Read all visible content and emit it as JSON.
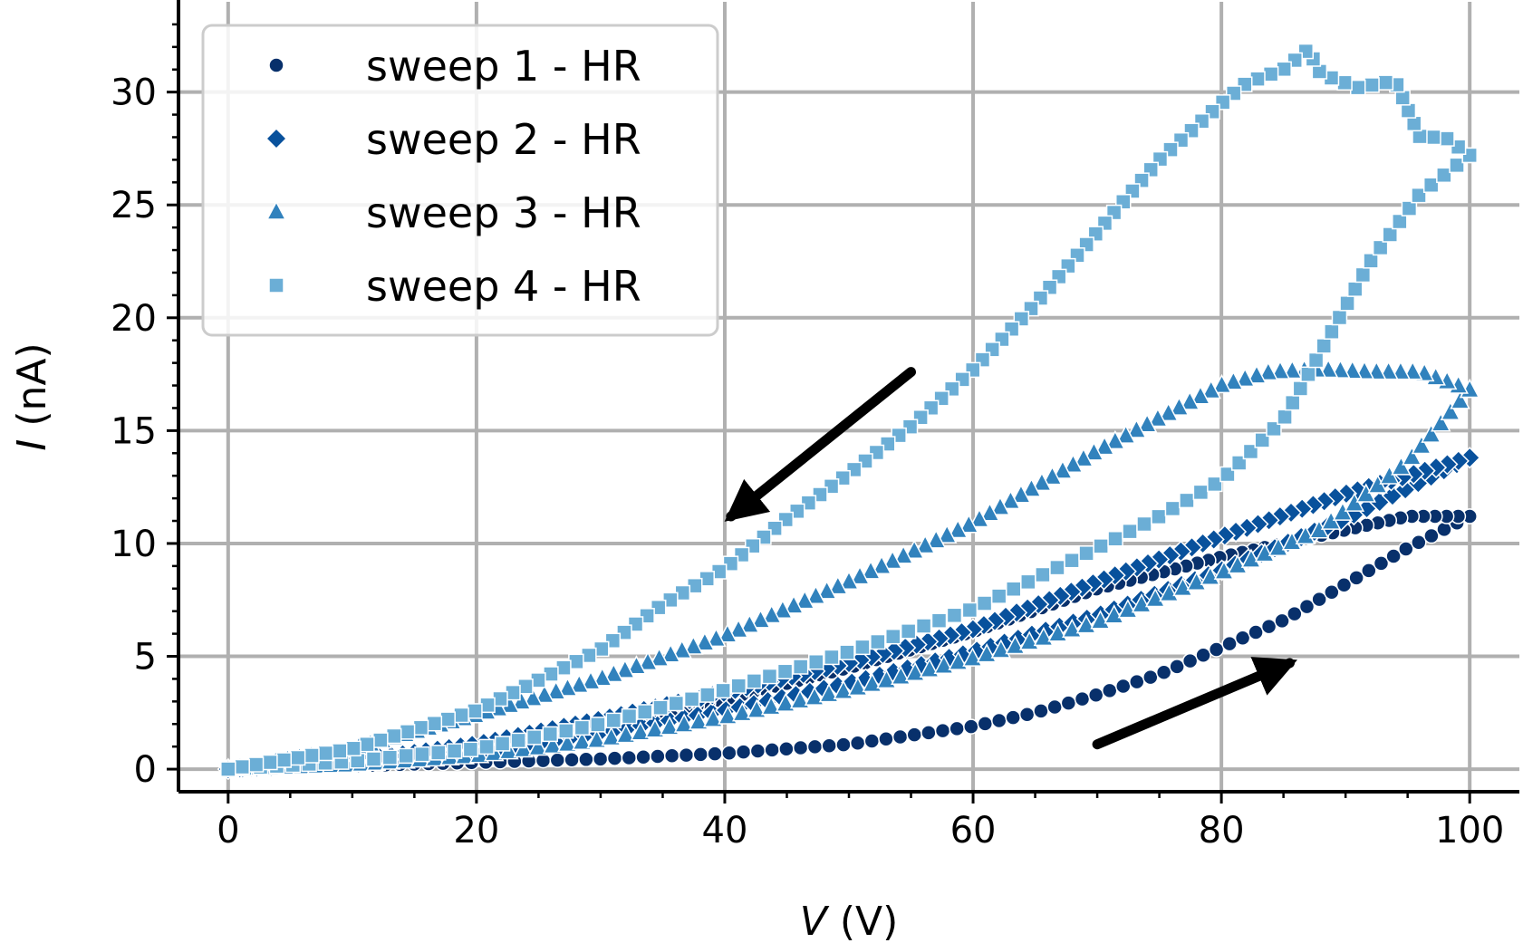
{
  "chart_data": {
    "type": "scatter",
    "title": "",
    "xlabel": {
      "var": "V",
      "unit": "(V)"
    },
    "ylabel": {
      "var": "I",
      "unit": "(nA)"
    },
    "xlim": [
      -4,
      104
    ],
    "ylim": [
      -1.0,
      34.0
    ],
    "xticks": [
      0,
      20,
      40,
      60,
      80,
      100
    ],
    "xtick_labels": [
      "0",
      "20",
      "40",
      "60",
      "80",
      "100"
    ],
    "yticks": [
      0,
      5,
      10,
      15,
      20,
      25,
      30
    ],
    "ytick_labels": [
      "0",
      "5",
      "10",
      "15",
      "20",
      "25",
      "30"
    ],
    "grid": true,
    "legend_position": "top-left",
    "annotations": [
      {
        "type": "arrow",
        "from": [
          55,
          17.6
        ],
        "to": [
          40.5,
          11.2
        ],
        "meaning": "decreasing sweep"
      },
      {
        "type": "arrow",
        "from": [
          70,
          1.1
        ],
        "to": [
          85.5,
          4.7
        ],
        "meaning": "increasing sweep"
      }
    ],
    "series": [
      {
        "name": "sweep 1 - HR",
        "marker": "circle",
        "color": "#08306b",
        "up": {
          "x": [
            0,
            10,
            20,
            30,
            40,
            50,
            60,
            65,
            70,
            75,
            80,
            85,
            90,
            95,
            100
          ],
          "y": [
            0,
            0.15,
            0.3,
            0.45,
            0.7,
            1.1,
            1.9,
            2.5,
            3.3,
            4.2,
            5.4,
            6.6,
            8.2,
            9.8,
            11.2
          ]
        },
        "down": {
          "x": [
            100,
            95,
            90,
            85,
            80,
            70,
            60,
            50,
            40,
            30,
            20,
            10,
            0
          ],
          "y": [
            11.2,
            11.2,
            10.6,
            10.0,
            9.4,
            8.0,
            6.1,
            4.5,
            3.1,
            1.8,
            0.9,
            0.3,
            0
          ]
        }
      },
      {
        "name": "sweep 2 - HR",
        "marker": "diamond",
        "color": "#08519c",
        "up": {
          "x": [
            0,
            10,
            20,
            30,
            40,
            50,
            60,
            70,
            80,
            90,
            100
          ],
          "y": [
            0,
            0.3,
            0.8,
            1.6,
            2.6,
            3.8,
            5.2,
            6.8,
            8.8,
            11.1,
            13.8
          ]
        },
        "down": {
          "x": [
            100,
            90,
            80,
            70,
            60,
            50,
            40,
            30,
            20,
            10,
            0
          ],
          "y": [
            13.8,
            12.2,
            10.3,
            8.3,
            6.2,
            4.7,
            3.4,
            2.2,
            1.1,
            0.35,
            0
          ]
        }
      },
      {
        "name": "sweep 3 - HR",
        "marker": "triangle",
        "color": "#3182bd",
        "up": {
          "x": [
            0,
            10,
            20,
            30,
            40,
            50,
            60,
            70,
            80,
            88,
            95,
            100
          ],
          "y": [
            0,
            0.2,
            0.6,
            1.3,
            2.3,
            3.5,
            4.9,
            6.5,
            8.7,
            10.6,
            13.6,
            16.8
          ]
        },
        "down": {
          "x": [
            100,
            96,
            92,
            88,
            84,
            80,
            70,
            60,
            50,
            40,
            30,
            20,
            10,
            0
          ],
          "y": [
            16.8,
            17.6,
            17.6,
            17.7,
            17.6,
            17.0,
            14.1,
            10.9,
            8.3,
            5.9,
            4.0,
            2.4,
            0.9,
            0
          ]
        }
      },
      {
        "name": "sweep 4 - HR",
        "marker": "square",
        "color": "#6baed6",
        "up": {
          "x": [
            0,
            10,
            20,
            30,
            40,
            50,
            60,
            70,
            75,
            80,
            85,
            88,
            92,
            96,
            100
          ],
          "y": [
            0,
            0.35,
            0.9,
            2.0,
            3.5,
            5.2,
            7.1,
            9.8,
            11.2,
            12.8,
            15.5,
            18.5,
            22.5,
            25.5,
            27.2
          ]
        },
        "down": {
          "x": [
            100,
            98,
            96,
            94,
            91,
            88,
            87,
            85,
            82,
            80,
            75,
            70,
            65,
            60,
            55,
            50,
            45,
            40,
            35,
            30,
            20,
            10,
            0
          ],
          "y": [
            27.2,
            28.0,
            28.0,
            30.5,
            30.2,
            30.8,
            31.9,
            31.0,
            30.4,
            29.5,
            27.0,
            23.8,
            20.6,
            17.7,
            15.2,
            13.1,
            11.1,
            8.9,
            7.3,
            5.3,
            2.6,
            0.9,
            0
          ]
        }
      }
    ]
  }
}
